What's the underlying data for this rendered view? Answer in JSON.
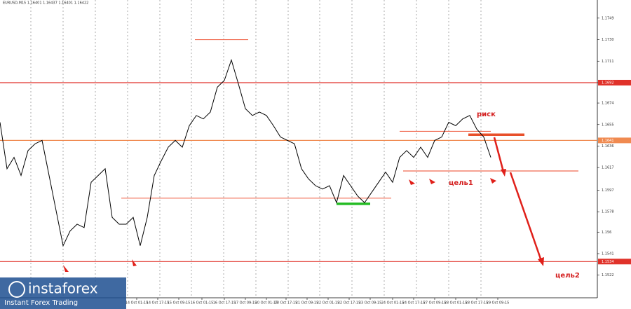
{
  "chart_data": {
    "type": "line",
    "title": "EURUSD,M15  1.16401 1.16437 1.16401 1.16422",
    "series": [
      {
        "color": "#000000",
        "values": [
          1.1657,
          1.1616,
          1.1626,
          1.161,
          1.1632,
          1.1638,
          1.1641,
          1.161,
          1.1579,
          1.1548,
          1.1561,
          1.1567,
          1.1564,
          1.1604,
          1.161,
          1.1616,
          1.1573,
          1.1567,
          1.1567,
          1.1573,
          1.1548,
          1.1573,
          1.161,
          1.1623,
          1.1635,
          1.1641,
          1.1635,
          1.1654,
          1.1663,
          1.166,
          1.1666,
          1.1688,
          1.1694,
          1.1712,
          1.1691,
          1.1669,
          1.1663,
          1.1666,
          1.1663,
          1.1654,
          1.1644,
          1.1641,
          1.1638,
          1.1616,
          1.1607,
          1.1601,
          1.1598,
          1.1601,
          1.1586,
          1.161,
          1.1601,
          1.1592,
          1.1586,
          1.1595,
          1.1604,
          1.1613,
          1.1604,
          1.1626,
          1.1632,
          1.1626,
          1.1635,
          1.1626,
          1.1641,
          1.1644,
          1.1657,
          1.1654,
          1.166,
          1.1663,
          1.1651,
          1.1644,
          1.1626
        ]
      }
    ],
    "xlim": [
      0,
      85.2
    ],
    "ylim": [
      1.1502,
      1.1765
    ],
    "xticks": [
      {
        "value": 19.5,
        "label": "14 Oct 01:15"
      },
      {
        "value": 22.5,
        "label": "14 Oct 17:15"
      },
      {
        "value": 25.5,
        "label": "15 Oct 09:15"
      },
      {
        "value": 28.8,
        "label": "16 Oct 01:15"
      },
      {
        "value": 32,
        "label": "16 Oct 17:15"
      },
      {
        "value": 35,
        "label": "17 Oct 09:15"
      },
      {
        "value": 38,
        "label": "20 Oct 01:15"
      },
      {
        "value": 40.8,
        "label": "20 Oct 17:15"
      },
      {
        "value": 43.8,
        "label": "21 Oct 09:15"
      },
      {
        "value": 46.8,
        "label": "22 Oct 01:15"
      },
      {
        "value": 49.8,
        "label": "22 Oct 17:15"
      },
      {
        "value": 52.8,
        "label": "23 Oct 09:15"
      },
      {
        "value": 56,
        "label": "24 Oct 01:15"
      },
      {
        "value": 59,
        "label": "24 Oct 17:15"
      },
      {
        "value": 62,
        "label": "27 Oct 09:15"
      },
      {
        "value": 65,
        "label": "28 Oct 01:15"
      },
      {
        "value": 68,
        "label": "28 Oct 17:15"
      },
      {
        "value": 71,
        "label": "29 Oct 09:15"
      }
    ],
    "yticks": [
      1.1522,
      1.1541,
      1.156,
      1.1578,
      1.1597,
      1.1617,
      1.1636,
      1.1655,
      1.1674,
      {
        "value": 1.1692,
        "label": "1.1692"
      },
      1.1711,
      {
        "value": 1.173,
        "label": "1.1730"
      },
      1.1749
    ],
    "levels": [
      {
        "value": 1.1692,
        "color": "#e0322a",
        "label": "1.1692"
      },
      {
        "value": 1.1534,
        "color": "#e0322a",
        "label": "1.1534"
      },
      {
        "value": 1.1641,
        "color": "#f08a50",
        "label": "1.1641"
      },
      {
        "value": 1.159,
        "color": "#f06a50",
        "from": 17.3,
        "to": 55.8
      },
      {
        "value": 1.1614,
        "color": "#f06a50",
        "from": 57.5,
        "to": 82.5
      },
      {
        "value": 1.1649,
        "color": "#f06a50",
        "from": 57,
        "to": 70
      },
      {
        "value": 1.173,
        "color": "#f06a50",
        "from": 27.8,
        "to": 35.4
      },
      {
        "value": 1.1585,
        "color": "#22bb22",
        "from": 48,
        "to": 52.8,
        "thick": true
      },
      {
        "value": 1.1646,
        "color": "#e8502a",
        "from": 66.8,
        "to": 74.8,
        "thick": true
      }
    ],
    "annotations": [
      "риск",
      "цель1",
      "цель2"
    ],
    "logo": {
      "brand": "instaforex",
      "tagline": "Instant Forex Trading"
    }
  }
}
